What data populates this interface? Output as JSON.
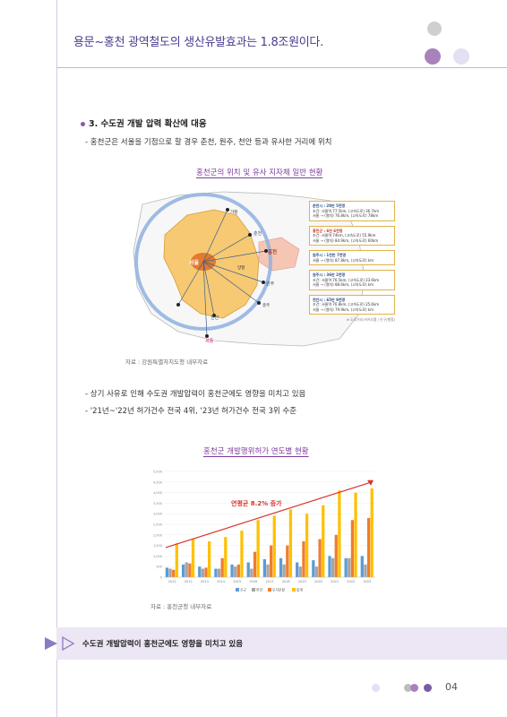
{
  "header": {
    "title": "용문~홍천 광역철도의 생산유발효과는 1.8조원이다."
  },
  "section": {
    "heading": "3. 수도권 개발 압력 확산에 대응",
    "bullet1": "- 홍천군은 서울을 기점으로 할 경우 춘천, 원주, 천안 등과 유사한 거리에 위치"
  },
  "figure1": {
    "caption": "홍천군의 위치 및 유사 지자체 일반 현황",
    "source": "자료 : 강원특별자치도청 내부자료",
    "map_labels": {
      "seoul": "서울",
      "hongcheon": "홍천",
      "chuncheon": "춘천",
      "wonju": "원주",
      "cheonan": "천안",
      "sejong": "세종",
      "yangpyeong": "양평",
      "cheongju": "충주",
      "gapyeong": "가평"
    },
    "info_boxes": [
      {
        "title": "춘천시 : 28만 5천명",
        "line1": "조건: 서울역 77.5km, (고속도로) 36.7km",
        "line2": "서울 → (열차) 76.8km, (고속도로) 78km"
      },
      {
        "title": "홍천군 : 6만 6천명",
        "line1": "조건: 서울역 74km, (고속도로) 55.9km",
        "line2": "서울 → (열차) 84.9km, (고속도로) 60km"
      },
      {
        "title": "원주시 : 1천만 7천명",
        "line1": "서울 → (열차) 87.8km, (고속도로) km",
        "line2": ""
      },
      {
        "title": "원주시 : 36만 2천명",
        "line1": "조건: 서울역 76.5km, (고속도로) 23.6km",
        "line2": "서울 → (열차) 88.6km, (고속도로) km"
      },
      {
        "title": "천안시 : 65만 9천명",
        "line1": "조건: 서울역 76.8km, (고속도로) 25.6km",
        "line2": "서울 → (열차) 79.9km, (고속도로) km"
      }
    ],
    "map_note": "※ 도로거리:카카오맵 / 인구(행정)"
  },
  "bullets2": {
    "line1": "- 상기 사유로 인해 수도권 개발압력이 홍천군에도 영향을 미치고 있음",
    "line2": "- '21년~'22년 허가건수 전국 4위, '23년 허가건수 전국 3위 수준"
  },
  "figure2": {
    "caption": "홍천군 개발행위허가 연도별 현황",
    "source": "자료 : 홍천군청 내부자료",
    "annotation": "연평균 8.2% 증가"
  },
  "chart_data": {
    "type": "bar",
    "title": "",
    "xlabel": "",
    "ylabel": "",
    "categories": [
      "2011",
      "2012",
      "2013",
      "2014",
      "2015",
      "2016",
      "2017",
      "2018",
      "2019",
      "2020",
      "2021",
      "2022",
      "2023"
    ],
    "ylim": [
      0,
      5000
    ],
    "yticks": [
      "0",
      "500",
      "1,000",
      "1,500",
      "2,000",
      "2,500",
      "3,000",
      "3,500",
      "4,000",
      "4,500",
      "5,000"
    ],
    "series": [
      {
        "name": "신규",
        "color": "#5b9bd5",
        "values": [
          450,
          600,
          500,
          400,
          600,
          700,
          850,
          900,
          700,
          800,
          1000,
          900,
          1000
        ]
      },
      {
        "name": "변경",
        "color": "#a5a5a5",
        "values": [
          400,
          700,
          400,
          400,
          500,
          400,
          600,
          600,
          500,
          500,
          900,
          900,
          600
        ]
      },
      {
        "name": "토지분할",
        "color": "#ed7d31",
        "values": [
          350,
          650,
          450,
          900,
          600,
          1200,
          1500,
          1500,
          1700,
          1800,
          2000,
          2700,
          2800
        ]
      },
      {
        "name": "합계",
        "color": "#ffc000",
        "values": [
          1600,
          1800,
          1700,
          1900,
          2200,
          2700,
          2900,
          3200,
          3000,
          3400,
          4100,
          4000,
          4200
        ]
      }
    ],
    "trend": {
      "from": 1400,
      "to": 4500
    },
    "legend_position": "bottom"
  },
  "summary": {
    "text": "수도권 개발압력이 홍천군에도 영향을 미치고 있음"
  },
  "footer": {
    "page": "04"
  },
  "colors": {
    "accent": "#4a3b8f",
    "purple": "#8a5aa5",
    "light_purple": "#e6e0f2",
    "summary_bg": "#ece6f5"
  }
}
